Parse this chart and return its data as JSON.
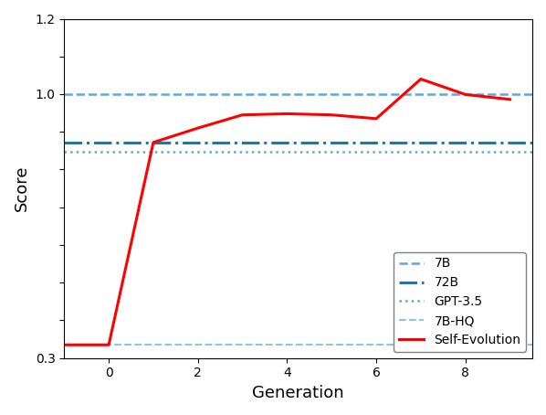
{
  "title": "",
  "xlabel": "Generation",
  "ylabel": "Score",
  "xlim": [
    -1,
    9.5
  ],
  "ylim": [
    0.3,
    1.2
  ],
  "xticks": [
    0,
    2,
    4,
    6,
    8
  ],
  "ytick_positions": [
    0.3,
    0.4,
    0.5,
    0.6,
    0.7,
    0.8,
    0.9,
    1.0,
    1.1,
    1.2
  ],
  "ytick_labels": [
    "0.3",
    "",
    "",
    "",
    "",
    "",
    "",
    "1.0",
    "",
    "1.2"
  ],
  "line_7B_y": 1.0,
  "line_7B_color": "#5aabdc",
  "line_7B_style": "--",
  "line_7B_lw": 1.8,
  "line_72B_y": 0.872,
  "line_72B_color": "#2175ad",
  "line_72B_style": "-.",
  "line_72B_lw": 2.2,
  "line_GPT35_y": 0.848,
  "line_GPT35_color": "#5aabdc",
  "line_GPT35_style": ":",
  "line_GPT35_lw": 1.8,
  "line_7BHQ_y": 0.335,
  "line_7BHQ_color": "#85c8e8",
  "line_7BHQ_style": "--",
  "line_7BHQ_lw": 1.5,
  "self_evolution_x": [
    -1,
    0,
    1,
    2,
    3,
    4,
    5,
    6,
    7,
    8,
    9
  ],
  "self_evolution_y": [
    0.335,
    0.335,
    0.872,
    0.91,
    0.945,
    0.948,
    0.945,
    0.935,
    1.04,
    0.999,
    0.986
  ],
  "self_evolution_color": "red",
  "self_evolution_lw": 2.2,
  "legend_labels": [
    "7B",
    "72B",
    "GPT-3.5",
    "7B-HQ",
    "Self-Evolution"
  ],
  "legend_loc": "lower right",
  "background_color": "#ffffff"
}
